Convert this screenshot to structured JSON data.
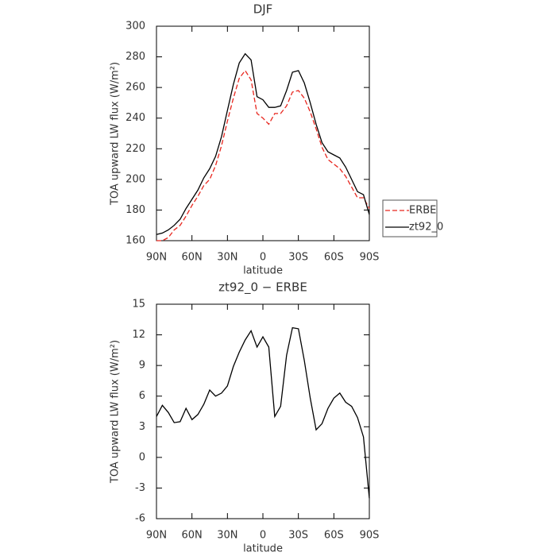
{
  "chart_data": [
    {
      "type": "line",
      "title": "DJF",
      "xlabel": "latitude",
      "ylabel": "TOA upward LW flux (W/m²)",
      "x": [
        90,
        85,
        80,
        75,
        70,
        65,
        60,
        55,
        50,
        45,
        40,
        35,
        30,
        25,
        20,
        15,
        10,
        5,
        0,
        -5,
        -10,
        -15,
        -20,
        -25,
        -30,
        -35,
        -40,
        -45,
        -50,
        -55,
        -60,
        -65,
        -70,
        -75,
        -80,
        -85,
        -90
      ],
      "series": [
        {
          "name": "ERBE",
          "color": "#e8261e",
          "linestyle": "dashed",
          "values": [
            160,
            160,
            162,
            167,
            170,
            176,
            183,
            189,
            196,
            200,
            209,
            222,
            238,
            253,
            266,
            271,
            265,
            243,
            240,
            236,
            243,
            243,
            248,
            257,
            258,
            253,
            244,
            233,
            221,
            213,
            210,
            207,
            202,
            195,
            188,
            188,
            181
          ]
        },
        {
          "name": "zt92_0",
          "color": "#000000",
          "linestyle": "solid",
          "values": [
            164,
            165,
            167,
            170,
            174,
            181,
            187,
            193,
            201,
            207,
            215,
            228,
            245,
            262,
            276,
            282,
            278,
            254,
            252,
            247,
            247,
            248,
            258,
            270,
            271,
            263,
            250,
            236,
            224,
            218,
            216,
            214,
            208,
            200,
            192,
            190,
            177
          ]
        }
      ],
      "xlim": [
        90,
        -90
      ],
      "xticks": [
        {
          "value": 90,
          "label": "90N"
        },
        {
          "value": 60,
          "label": "60N"
        },
        {
          "value": 30,
          "label": "30N"
        },
        0,
        {
          "value": -30,
          "label": "30S"
        },
        {
          "value": -60,
          "label": "60S"
        },
        {
          "value": -90,
          "label": "90S"
        }
      ],
      "ylim": [
        160,
        300
      ],
      "yticks": [
        160,
        180,
        200,
        220,
        240,
        260,
        280,
        300
      ],
      "legend": "right"
    },
    {
      "type": "line",
      "title": "zt92_0 − ERBE",
      "xlabel": "latitude",
      "ylabel": "TOA upward LW flux (W/m²)",
      "x": [
        90,
        85,
        80,
        75,
        70,
        65,
        60,
        55,
        50,
        45,
        40,
        35,
        30,
        25,
        20,
        15,
        10,
        5,
        0,
        -5,
        -10,
        -15,
        -20,
        -25,
        -30,
        -35,
        -40,
        -45,
        -50,
        -55,
        -60,
        -65,
        -70,
        -75,
        -80,
        -85,
        -90
      ],
      "values": [
        4.0,
        5.1,
        4.4,
        3.4,
        3.5,
        4.8,
        3.7,
        4.2,
        5.2,
        6.6,
        6.0,
        6.3,
        7.0,
        8.9,
        10.3,
        11.5,
        12.4,
        10.8,
        11.8,
        10.8,
        4.0,
        5.0,
        10.0,
        12.7,
        12.6,
        9.5,
        5.8,
        2.7,
        3.3,
        4.8,
        5.8,
        6.3,
        5.4,
        5.0,
        3.9,
        2.0,
        -4.0
      ],
      "color": "#000000",
      "xlim": [
        90,
        -90
      ],
      "xticks": [
        {
          "value": 90,
          "label": "90N"
        },
        {
          "value": 60,
          "label": "60N"
        },
        {
          "value": 30,
          "label": "30N"
        },
        0,
        {
          "value": -30,
          "label": "30S"
        },
        {
          "value": -60,
          "label": "60S"
        },
        {
          "value": -90,
          "label": "90S"
        }
      ],
      "ylim": [
        -6,
        15
      ],
      "yticks": [
        -6,
        -3,
        0,
        3,
        6,
        9,
        12,
        15
      ]
    }
  ]
}
